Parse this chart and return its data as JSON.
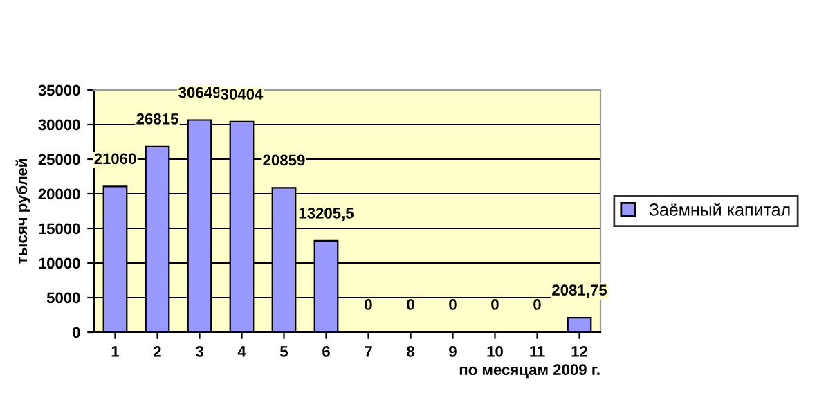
{
  "chart_data": {
    "type": "bar",
    "xlabel": "по месяцам 2009 г.",
    "ylabel": "тысяч рублей",
    "categories": [
      "1",
      "2",
      "3",
      "4",
      "5",
      "6",
      "7",
      "8",
      "9",
      "10",
      "11",
      "12"
    ],
    "series": [
      {
        "name": "Заёмный капитал",
        "color": "#9999ff",
        "values": [
          21060,
          26815,
          30649,
          30404,
          20859,
          13205.5,
          0,
          0,
          0,
          0,
          0,
          2081.75
        ],
        "value_labels": [
          "21060",
          "26815",
          "30649",
          "30404",
          "20859",
          "13205,5",
          "0",
          "0",
          "0",
          "0",
          "0",
          "2081,75"
        ]
      }
    ],
    "ylim": [
      0,
      35000
    ],
    "yticks": [
      0,
      5000,
      10000,
      15000,
      20000,
      25000,
      30000,
      35000
    ],
    "grid": "y",
    "legend": "right"
  }
}
